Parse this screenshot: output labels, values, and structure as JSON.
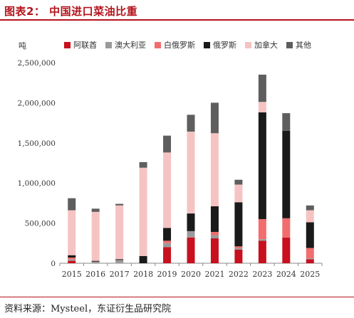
{
  "title": "图表2：  中国进口菜油比重",
  "source": "资料来源：Mysteel，东证衍生品研究院",
  "chart_data": {
    "type": "bar",
    "stacked": true,
    "unit": "吨",
    "categories": [
      "2015",
      "2016",
      "2017",
      "2018",
      "2019",
      "2020",
      "2021",
      "2022",
      "2023",
      "2024",
      "2025"
    ],
    "ylim": [
      0,
      2500000
    ],
    "yticks": [
      "0",
      "500,000",
      "1,000,000",
      "1,500,000",
      "2,000,000",
      "2,500,000"
    ],
    "legend_position": "top",
    "series": [
      {
        "name": "阿联酋",
        "color": "#c8101e",
        "values": [
          30000,
          0,
          0,
          0,
          200000,
          320000,
          310000,
          170000,
          280000,
          320000,
          50000
        ]
      },
      {
        "name": "澳大利亚",
        "color": "#9a9a9a",
        "values": [
          20000,
          20000,
          40000,
          0,
          50000,
          80000,
          40000,
          20000,
          20000,
          0,
          10000
        ]
      },
      {
        "name": "白俄罗斯",
        "color": "#f26d6d",
        "values": [
          20000,
          0,
          0,
          0,
          30000,
          0,
          40000,
          20000,
          250000,
          240000,
          130000
        ]
      },
      {
        "name": "俄罗斯",
        "color": "#1a1a1a",
        "values": [
          30000,
          10000,
          10000,
          90000,
          160000,
          220000,
          320000,
          550000,
          1330000,
          1090000,
          320000
        ]
      },
      {
        "name": "加拿大",
        "color": "#f6c3c3",
        "values": [
          560000,
          610000,
          670000,
          1100000,
          940000,
          1020000,
          910000,
          220000,
          130000,
          0,
          150000
        ]
      },
      {
        "name": "其他",
        "color": "#5e5e5e",
        "values": [
          150000,
          40000,
          20000,
          70000,
          210000,
          210000,
          380000,
          60000,
          340000,
          220000,
          60000
        ]
      }
    ]
  }
}
